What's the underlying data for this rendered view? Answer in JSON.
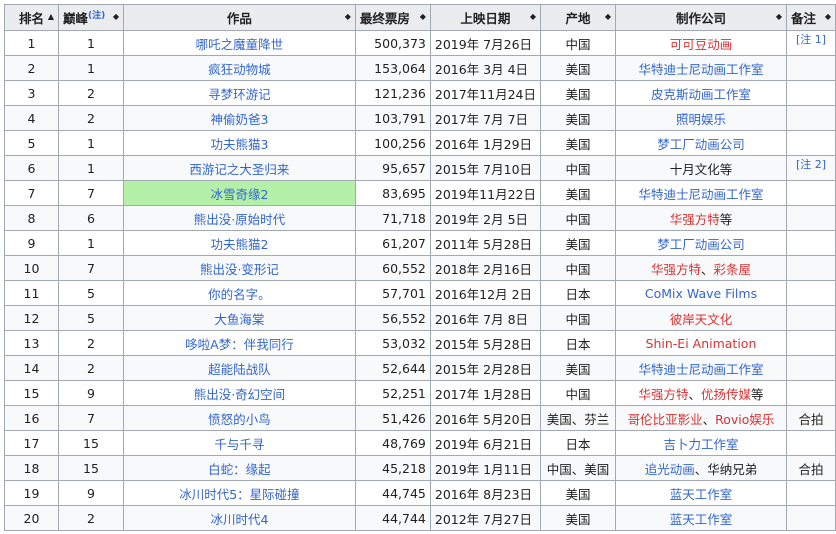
{
  "headers": {
    "rank": "排名",
    "peak": "巅峰",
    "peak_note": "(注)",
    "title": "作品",
    "gross": "最终票房",
    "date": "上映日期",
    "country": "产地",
    "studio": "制作公司",
    "notes": "备注"
  },
  "highlight_row": 7,
  "colors": {
    "link": "#3366cc",
    "redlink": "#d73333",
    "highlight": "#b4f0a8"
  },
  "rows": [
    {
      "rank": "1",
      "peak": "1",
      "title": "哪吒之魔童降世",
      "gross": "500,373",
      "date": "2019年 7月26日",
      "country": "中国",
      "studio": [
        {
          "t": "可可豆动画",
          "c": "red"
        }
      ],
      "note": "[注 1]"
    },
    {
      "rank": "2",
      "peak": "1",
      "title": "疯狂动物城",
      "gross": "153,064",
      "date": "2016年 3月 4日",
      "country": "美国",
      "studio": [
        {
          "t": "华特迪士尼动画工作室",
          "c": "blue"
        }
      ],
      "note": ""
    },
    {
      "rank": "3",
      "peak": "2",
      "title": "寻梦环游记",
      "gross": "121,236",
      "date": "2017年11月24日",
      "country": "美国",
      "studio": [
        {
          "t": "皮克斯动画工作室",
          "c": "blue"
        }
      ],
      "note": ""
    },
    {
      "rank": "4",
      "peak": "2",
      "title": "神偷奶爸3",
      "gross": "103,791",
      "date": "2017年 7月 7日",
      "country": "美国",
      "studio": [
        {
          "t": "照明娱乐",
          "c": "blue"
        }
      ],
      "note": ""
    },
    {
      "rank": "5",
      "peak": "1",
      "title": "功夫熊猫3",
      "gross": "100,256",
      "date": "2016年 1月29日",
      "country": "美国",
      "studio": [
        {
          "t": "梦工厂动画公司",
          "c": "blue"
        }
      ],
      "note": ""
    },
    {
      "rank": "6",
      "peak": "1",
      "title": "西游记之大圣归来",
      "gross": "95,657",
      "date": "2015年 7月10日",
      "country": "中国",
      "studio": [
        {
          "t": "十月文化等",
          "c": "black"
        }
      ],
      "note": "[注 2]"
    },
    {
      "rank": "7",
      "peak": "7",
      "title": "冰雪奇缘2",
      "gross": "83,695",
      "date": "2019年11月22日",
      "country": "美国",
      "studio": [
        {
          "t": "华特迪士尼动画工作室",
          "c": "blue"
        }
      ],
      "note": ""
    },
    {
      "rank": "8",
      "peak": "6",
      "title": "熊出没·原始时代",
      "gross": "71,718",
      "date": "2019年 2月 5日",
      "country": "中国",
      "studio": [
        {
          "t": "华强方特",
          "c": "red"
        },
        {
          "t": "等",
          "c": "black"
        }
      ],
      "note": ""
    },
    {
      "rank": "9",
      "peak": "1",
      "title": "功夫熊猫2",
      "gross": "61,207",
      "date": "2011年 5月28日",
      "country": "美国",
      "studio": [
        {
          "t": "梦工厂动画公司",
          "c": "blue"
        }
      ],
      "note": ""
    },
    {
      "rank": "10",
      "peak": "7",
      "title": "熊出没·变形记",
      "gross": "60,552",
      "date": "2018年 2月16日",
      "country": "中国",
      "studio": [
        {
          "t": "华强方特",
          "c": "red"
        },
        {
          "t": "、",
          "c": "black"
        },
        {
          "t": "彩条屋",
          "c": "red"
        }
      ],
      "note": ""
    },
    {
      "rank": "11",
      "peak": "5",
      "title": "你的名字。",
      "gross": "57,701",
      "date": "2016年12月 2日",
      "country": "日本",
      "studio": [
        {
          "t": "CoMix Wave Films",
          "c": "blue"
        }
      ],
      "note": ""
    },
    {
      "rank": "12",
      "peak": "5",
      "title": "大鱼海棠",
      "gross": "56,552",
      "date": "2016年 7月 8日",
      "country": "中国",
      "studio": [
        {
          "t": "彼岸天文化",
          "c": "red"
        }
      ],
      "note": ""
    },
    {
      "rank": "13",
      "peak": "2",
      "title": "哆啦A梦：伴我同行",
      "gross": "53,032",
      "date": "2015年 5月28日",
      "country": "日本",
      "studio": [
        {
          "t": "Shin-Ei Animation",
          "c": "red"
        }
      ],
      "note": ""
    },
    {
      "rank": "14",
      "peak": "2",
      "title": "超能陆战队",
      "gross": "52,644",
      "date": "2015年 2月28日",
      "country": "美国",
      "studio": [
        {
          "t": "华特迪士尼动画工作室",
          "c": "blue"
        }
      ],
      "note": ""
    },
    {
      "rank": "15",
      "peak": "9",
      "title": "熊出没·奇幻空间",
      "gross": "52,251",
      "date": "2017年 1月28日",
      "country": "中国",
      "studio": [
        {
          "t": "华强方特",
          "c": "red"
        },
        {
          "t": "、",
          "c": "black"
        },
        {
          "t": "优扬传媒",
          "c": "red"
        },
        {
          "t": "等",
          "c": "black"
        }
      ],
      "note": ""
    },
    {
      "rank": "16",
      "peak": "7",
      "title": "愤怒的小鸟",
      "gross": "51,426",
      "date": "2016年 5月20日",
      "country": "美国、芬兰",
      "studio": [
        {
          "t": "哥伦比亚影业",
          "c": "red"
        },
        {
          "t": "、",
          "c": "black"
        },
        {
          "t": "Rovio娱乐",
          "c": "red"
        }
      ],
      "note": "合拍"
    },
    {
      "rank": "17",
      "peak": "15",
      "title": "千与千寻",
      "gross": "48,769",
      "date": "2019年 6月21日",
      "country": "日本",
      "studio": [
        {
          "t": "吉卜力工作室",
          "c": "blue"
        }
      ],
      "note": ""
    },
    {
      "rank": "18",
      "peak": "15",
      "title": "白蛇：缘起",
      "gross": "45,218",
      "date": "2019年 1月11日",
      "country": "中国、美国",
      "studio": [
        {
          "t": "追光动画",
          "c": "blue"
        },
        {
          "t": "、华纳兄弟",
          "c": "black"
        }
      ],
      "note": "合拍"
    },
    {
      "rank": "19",
      "peak": "9",
      "title": "冰川时代5：星际碰撞",
      "gross": "44,745",
      "date": "2016年 8月23日",
      "country": "美国",
      "studio": [
        {
          "t": "蓝天工作室",
          "c": "blue"
        }
      ],
      "note": ""
    },
    {
      "rank": "20",
      "peak": "2",
      "title": "冰川时代4",
      "gross": "44,744",
      "date": "2012年 7月27日",
      "country": "美国",
      "studio": [
        {
          "t": "蓝天工作室",
          "c": "blue"
        }
      ],
      "note": ""
    }
  ]
}
